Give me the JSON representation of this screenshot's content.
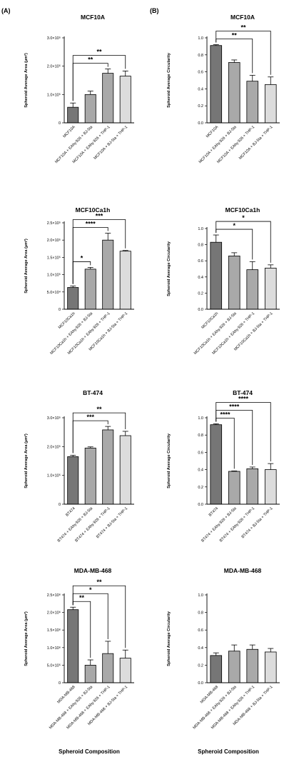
{
  "panels": [
    {
      "label": "(A)"
    },
    {
      "label": "(B)"
    }
  ],
  "footer": {
    "xlabel_left": "Spheroid Composition",
    "xlabel_right": "Spheroid Composition"
  },
  "colors": {
    "dark": "#767676",
    "mid": "#a9a9a9",
    "light": "#dcdcdc"
  },
  "chart_data": [
    {
      "type": "bar",
      "panel": "A",
      "title": "MCF10A",
      "ylabel": "Spheroid Average Area (µm²)",
      "categories": [
        "MCF10A",
        "MCF10A + EAhy.926 + BJ-5ta",
        "MCF10A + EAhy.926 + THP-1",
        "MCF10A + BJ-5ta + THP-1"
      ],
      "values": [
        55000,
        100000,
        175000,
        165000
      ],
      "errors": [
        15000,
        12000,
        15000,
        18000
      ],
      "ylim": [
        0,
        300000
      ],
      "yticks": [
        0,
        100000,
        200000,
        300000
      ],
      "ytick_labels": [
        "0",
        "1.0×10⁵",
        "2.0×10⁵",
        "3.0×10⁵"
      ],
      "significance": [
        {
          "from": 0,
          "to": 2,
          "label": "**"
        },
        {
          "from": 0,
          "to": 3,
          "label": "**"
        }
      ]
    },
    {
      "type": "bar",
      "panel": "A",
      "title": "MCF10Ca1h",
      "ylabel": "Spheroid Average Area (µm²)",
      "categories": [
        "MCF10Ca1h",
        "MCF10Ca1h + EAhy.926 + BJ-5ta",
        "MCF10Ca1h + EAhy.926 + THP-1",
        "MCF10Ca1h + BJ-5ta + THP-1"
      ],
      "values": [
        63000,
        116000,
        200000,
        168000
      ],
      "errors": [
        4000,
        5000,
        20000,
        2000
      ],
      "ylim": [
        0,
        250000
      ],
      "yticks": [
        0,
        50000,
        100000,
        150000,
        200000,
        250000
      ],
      "ytick_labels": [
        "0",
        "5.0×10⁴",
        "1.0×10⁵",
        "1.5×10⁵",
        "2.0×10⁵",
        "2.5×10⁵"
      ],
      "significance": [
        {
          "from": 0,
          "to": 1,
          "label": "*"
        },
        {
          "from": 0,
          "to": 2,
          "label": "****"
        },
        {
          "from": 0,
          "to": 3,
          "label": "***"
        }
      ]
    },
    {
      "type": "bar",
      "panel": "A",
      "title": "BT-474",
      "ylabel": "Spheroid Average Area (µm²)",
      "categories": [
        "BT474",
        "BT474 + EAhy.926 + BJ-5ta",
        "BT474 + EAhy.926 + THP-1",
        "BT474 + BJ-5ta + THP-1"
      ],
      "values": [
        165000,
        195000,
        258000,
        238000
      ],
      "errors": [
        5000,
        4000,
        12000,
        15000
      ],
      "ylim": [
        0,
        300000
      ],
      "yticks": [
        0,
        100000,
        200000,
        300000
      ],
      "ytick_labels": [
        "0",
        "1.0×10⁵",
        "2.0×10⁵",
        "3.0×10⁵"
      ],
      "significance": [
        {
          "from": 0,
          "to": 2,
          "label": "***"
        },
        {
          "from": 0,
          "to": 3,
          "label": "**"
        }
      ]
    },
    {
      "type": "bar",
      "panel": "A",
      "title": "MDA-MB-468",
      "ylabel": "Spheroid Average Area (µm²)",
      "categories": [
        "MDA-MB-468",
        "MDA-MB-468 + EAhy.926 + BJ-5ta",
        "MDA-MB-468 + EAhy.926 + THP-1",
        "MDA-MB-468 + BJ-5ta + THP-1"
      ],
      "values": [
        2080000,
        500000,
        830000,
        700000
      ],
      "errors": [
        70000,
        150000,
        350000,
        230000
      ],
      "ylim": [
        0,
        2500000
      ],
      "yticks": [
        0,
        500000,
        1000000,
        1500000,
        2000000,
        2500000
      ],
      "ytick_labels": [
        "0",
        "5.0×10⁵",
        "1.0×10⁶",
        "1.5×10⁶",
        "2.0×10⁶",
        "2.5×10⁶"
      ],
      "significance": [
        {
          "from": 0,
          "to": 1,
          "label": "**"
        },
        {
          "from": 0,
          "to": 2,
          "label": "*"
        },
        {
          "from": 0,
          "to": 3,
          "label": "**"
        }
      ]
    },
    {
      "type": "bar",
      "panel": "B",
      "title": "MCF10A",
      "ylabel": "Spheroid Average Circularity",
      "categories": [
        "MCF10A",
        "MCF10A + EAhy.926 + BJ-5ta",
        "MCF10A + EAhy.926 + THP-1",
        "MCF10A + BJ-5ta + THP-1"
      ],
      "values": [
        0.91,
        0.71,
        0.49,
        0.45
      ],
      "errors": [
        0.01,
        0.03,
        0.07,
        0.09
      ],
      "ylim": [
        0,
        1.0
      ],
      "yticks": [
        0,
        0.2,
        0.4,
        0.6,
        0.8,
        1.0
      ],
      "ytick_labels": [
        "0.0",
        "0.2",
        "0.4",
        "0.6",
        "0.8",
        "1.0"
      ],
      "significance": [
        {
          "from": 0,
          "to": 2,
          "label": "**"
        },
        {
          "from": 0,
          "to": 3,
          "label": "**"
        }
      ]
    },
    {
      "type": "bar",
      "panel": "B",
      "title": "MCF10Ca1h",
      "ylabel": "Spheroid Average Circularity",
      "categories": [
        "MCF10Ca1h",
        "MCF10Ca1h + EAhy.926 + BJ-5ta",
        "MCF10Ca1h + EAhy.926 + THP-1",
        "MCF10Ca1h + BJ-5ta + THP-1"
      ],
      "values": [
        0.83,
        0.66,
        0.49,
        0.51
      ],
      "errors": [
        0.09,
        0.04,
        0.1,
        0.04
      ],
      "ylim": [
        0,
        1.0
      ],
      "yticks": [
        0,
        0.2,
        0.4,
        0.6,
        0.8,
        1.0
      ],
      "ytick_labels": [
        "0.0",
        "0.2",
        "0.4",
        "0.6",
        "0.8",
        "1.0"
      ],
      "significance": [
        {
          "from": 0,
          "to": 2,
          "label": "*"
        },
        {
          "from": 0,
          "to": 3,
          "label": "*"
        }
      ]
    },
    {
      "type": "bar",
      "panel": "B",
      "title": "BT-474",
      "ylabel": "Spheroid Average Circularity",
      "categories": [
        "BT474",
        "BT474 + EAhy.926 + BJ-5ta",
        "BT474 + EAhy.926 + THP-1",
        "BT474 + BJ-5ta + THP-1"
      ],
      "values": [
        0.92,
        0.38,
        0.41,
        0.4
      ],
      "errors": [
        0.01,
        0.005,
        0.02,
        0.07
      ],
      "ylim": [
        0,
        1.0
      ],
      "yticks": [
        0,
        0.2,
        0.4,
        0.6,
        0.8,
        1.0
      ],
      "ytick_labels": [
        "0.0",
        "0.2",
        "0.4",
        "0.6",
        "0.8",
        "1.0"
      ],
      "significance": [
        {
          "from": 0,
          "to": 1,
          "label": "****"
        },
        {
          "from": 0,
          "to": 2,
          "label": "****"
        },
        {
          "from": 0,
          "to": 3,
          "label": "****"
        }
      ]
    },
    {
      "type": "bar",
      "panel": "B",
      "title": "MDA-MB-468",
      "ylabel": "Spheroid Average Circularity",
      "categories": [
        "MDA-MB-468",
        "MDA-MB-468 + EAhy.926 + BJ-5ta",
        "MDA-MB-468 + EAhy.926 + THP-1",
        "MDA-MB-468 + BJ-5ta + THP-1"
      ],
      "values": [
        0.31,
        0.36,
        0.38,
        0.35
      ],
      "errors": [
        0.03,
        0.07,
        0.05,
        0.04
      ],
      "ylim": [
        0,
        1.0
      ],
      "yticks": [
        0,
        0.2,
        0.4,
        0.6,
        0.8,
        1.0
      ],
      "ytick_labels": [
        "0.0",
        "0.2",
        "0.4",
        "0.6",
        "0.8",
        "1.0"
      ],
      "significance": []
    }
  ]
}
